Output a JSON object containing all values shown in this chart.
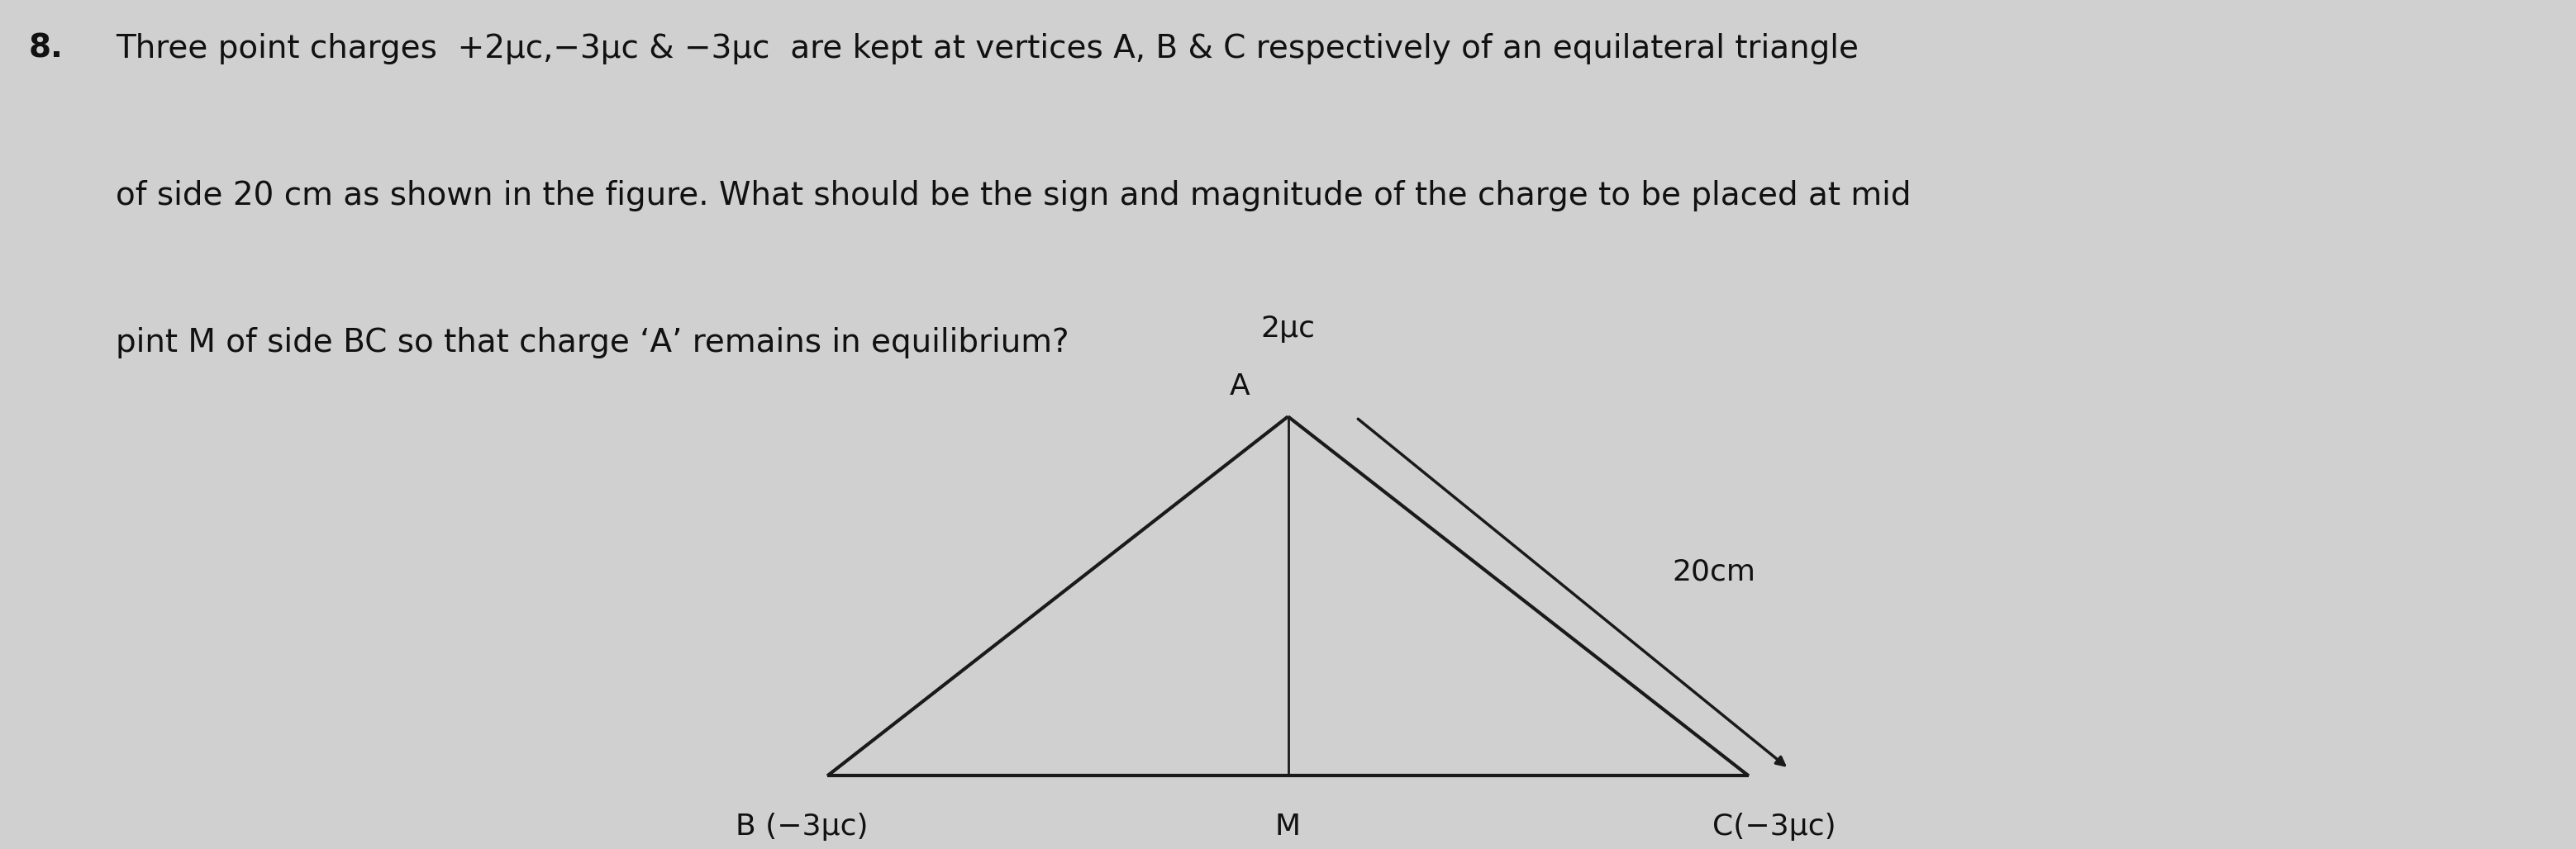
{
  "question_number": "8.",
  "question_text_line1": "Three point charges  +2μc,−3μc & −3μc  are kept at vertices A, B & C respectively of an equilateral triangle",
  "question_text_line2": "of side 20 cm as shown in the figure. What should be the sign and magnitude of the charge to be placed at mid",
  "question_text_line3": "pint M of side BC so that charge ‘A’ remains in equilibrium?",
  "background_color": "#d0d0d0",
  "text_color": "#111111",
  "triangle_color": "#1a1a1a",
  "triangle_linewidth": 3.0,
  "median_linewidth": 2.0,
  "arrow_linewidth": 2.5,
  "vertex_A_label": "A",
  "vertex_B_label": "B (−3μc)",
  "vertex_C_label": "C(−3μc)",
  "vertex_A_charge": "2μc",
  "midpoint_M_label": "M",
  "side_label": "20cm",
  "font_size_question": 28,
  "font_size_labels": 26,
  "font_size_charge": 26,
  "font_size_side": 26,
  "fig_width": 30.97,
  "fig_height": 9.89
}
